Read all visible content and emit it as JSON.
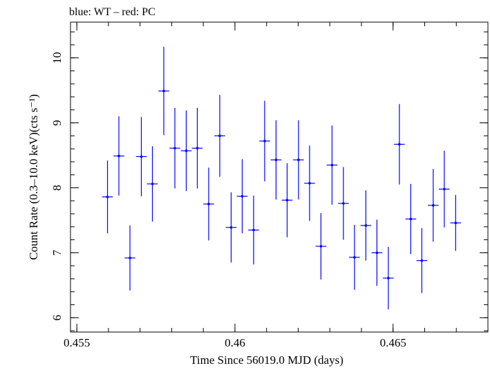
{
  "chart_data": {
    "type": "scatter",
    "title": "blue: WT – red: PC",
    "xlabel": "Time Since 56019.0 MJD (days)",
    "ylabel": "Count Rate (0.3–10.0 keV)(cts s⁻¹)",
    "xlim": [
      0.4548,
      0.468
    ],
    "ylim": [
      5.78,
      10.55
    ],
    "x_ticks": [
      {
        "value": 0.455,
        "label": "0.455"
      },
      {
        "value": 0.46,
        "label": "0.46"
      },
      {
        "value": 0.465,
        "label": "0.465"
      }
    ],
    "y_ticks": [
      {
        "value": 6,
        "label": "6"
      },
      {
        "value": 7,
        "label": "7"
      },
      {
        "value": 8,
        "label": "8"
      },
      {
        "value": 9,
        "label": "9"
      },
      {
        "value": 10,
        "label": "10"
      }
    ],
    "grid": false,
    "legend": "none",
    "series": [
      {
        "color": "#0000ff",
        "points": [
          {
            "x": 0.45597,
            "xerr": 0.00017,
            "y": 7.86,
            "yerr": 0.56
          },
          {
            "x": 0.45633,
            "xerr": 0.00017,
            "y": 8.49,
            "yerr": 0.61
          },
          {
            "x": 0.45668,
            "xerr": 0.00017,
            "y": 6.92,
            "yerr": 0.5
          },
          {
            "x": 0.45704,
            "xerr": 0.00017,
            "y": 8.48,
            "yerr": 0.61
          },
          {
            "x": 0.45739,
            "xerr": 0.00017,
            "y": 8.06,
            "yerr": 0.58
          },
          {
            "x": 0.45775,
            "xerr": 0.00017,
            "y": 9.49,
            "yerr": 0.68
          },
          {
            "x": 0.4581,
            "xerr": 0.00017,
            "y": 8.61,
            "yerr": 0.62
          },
          {
            "x": 0.45846,
            "xerr": 0.00017,
            "y": 8.57,
            "yerr": 0.62
          },
          {
            "x": 0.45881,
            "xerr": 0.00017,
            "y": 8.61,
            "yerr": 0.62
          },
          {
            "x": 0.45917,
            "xerr": 0.00017,
            "y": 7.75,
            "yerr": 0.56
          },
          {
            "x": 0.45952,
            "xerr": 0.00017,
            "y": 8.8,
            "yerr": 0.63
          },
          {
            "x": 0.45988,
            "xerr": 0.00017,
            "y": 7.39,
            "yerr": 0.54
          },
          {
            "x": 0.46023,
            "xerr": 0.00017,
            "y": 7.87,
            "yerr": 0.57
          },
          {
            "x": 0.46059,
            "xerr": 0.00017,
            "y": 7.35,
            "yerr": 0.53
          },
          {
            "x": 0.46094,
            "xerr": 0.00017,
            "y": 8.72,
            "yerr": 0.62
          },
          {
            "x": 0.4613,
            "xerr": 0.00017,
            "y": 8.43,
            "yerr": 0.61
          },
          {
            "x": 0.46165,
            "xerr": 0.00017,
            "y": 7.81,
            "yerr": 0.57
          },
          {
            "x": 0.46201,
            "xerr": 0.00017,
            "y": 8.43,
            "yerr": 0.61
          },
          {
            "x": 0.46236,
            "xerr": 0.00017,
            "y": 8.07,
            "yerr": 0.58
          },
          {
            "x": 0.46272,
            "xerr": 0.00017,
            "y": 7.1,
            "yerr": 0.51
          },
          {
            "x": 0.46307,
            "xerr": 0.00017,
            "y": 8.35,
            "yerr": 0.61
          },
          {
            "x": 0.46343,
            "xerr": 0.00017,
            "y": 7.76,
            "yerr": 0.56
          },
          {
            "x": 0.46378,
            "xerr": 0.00017,
            "y": 6.93,
            "yerr": 0.5
          },
          {
            "x": 0.46414,
            "xerr": 0.00017,
            "y": 7.42,
            "yerr": 0.54
          },
          {
            "x": 0.46449,
            "xerr": 0.00017,
            "y": 7.0,
            "yerr": 0.51
          },
          {
            "x": 0.46485,
            "xerr": 0.00017,
            "y": 6.61,
            "yerr": 0.48
          },
          {
            "x": 0.4652,
            "xerr": 0.00017,
            "y": 8.67,
            "yerr": 0.62
          },
          {
            "x": 0.46556,
            "xerr": 0.00017,
            "y": 7.52,
            "yerr": 0.54
          },
          {
            "x": 0.46591,
            "xerr": 0.00017,
            "y": 6.88,
            "yerr": 0.5
          },
          {
            "x": 0.46627,
            "xerr": 0.00017,
            "y": 7.73,
            "yerr": 0.56
          },
          {
            "x": 0.46662,
            "xerr": 0.00017,
            "y": 7.98,
            "yerr": 0.59
          },
          {
            "x": 0.46698,
            "xerr": 0.00017,
            "y": 7.46,
            "yerr": 0.43
          }
        ]
      }
    ]
  }
}
